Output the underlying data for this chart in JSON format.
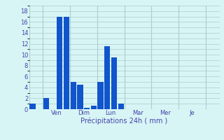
{
  "values": [
    1,
    0,
    2,
    0,
    17,
    17,
    5,
    4.5,
    0.3,
    0.7,
    5,
    11.5,
    9.5,
    1,
    0,
    0,
    0,
    0,
    0,
    0,
    0,
    0,
    0,
    0,
    0,
    0,
    0,
    0
  ],
  "ylim": [
    0,
    19
  ],
  "yticks": [
    0,
    2,
    4,
    6,
    8,
    10,
    12,
    14,
    16,
    18
  ],
  "day_labels": [
    "Ven",
    "Dim",
    "Lun",
    "Mar",
    "Mer",
    "Je"
  ],
  "day_tick_positions": [
    3.5,
    7.5,
    11.5,
    15.5,
    19.5,
    23.5
  ],
  "day_line_positions": [
    1.5,
    5.5,
    9.5,
    13.5,
    17.5,
    21.5,
    25.5
  ],
  "xlabel": "Précipitations 24h ( mm )",
  "bar_color": "#1155cc",
  "bg_color": "#d8f5f5",
  "grid_color": "#aacece",
  "text_color": "#4444aa",
  "n_bars": 28,
  "xlim": [
    -0.5,
    27.5
  ]
}
